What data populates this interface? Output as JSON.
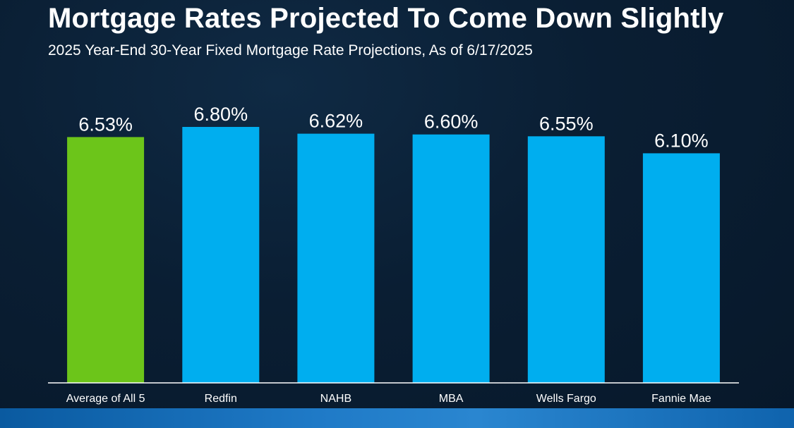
{
  "title": "Mortgage Rates Projected To Come Down Slightly",
  "subtitle": "2025 Year-End 30-Year Fixed Mortgage Rate Projections, As of 6/17/2025",
  "colors": {
    "highlight_bar": "#6cc51a",
    "bar": "#00aeef",
    "text": "#ffffff",
    "axis": "#ffffff"
  },
  "chart_data": {
    "type": "bar",
    "categories": [
      "Average of All 5",
      "Redfin",
      "NAHB",
      "MBA",
      "Wells Fargo",
      "Fannie Mae"
    ],
    "values": [
      6.53,
      6.8,
      6.62,
      6.6,
      6.55,
      6.1
    ],
    "data_labels": [
      "6.53%",
      "6.80%",
      "6.62%",
      "6.60%",
      "6.55%",
      "6.10%"
    ],
    "highlight_index": 0,
    "grid": false,
    "legend": "none",
    "xlabel": "",
    "ylabel": ""
  }
}
